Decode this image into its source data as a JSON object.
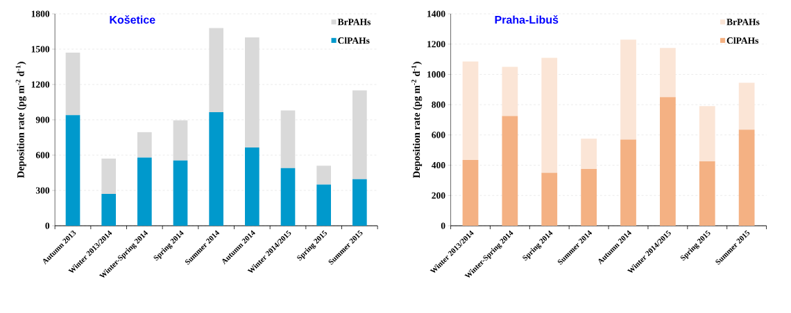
{
  "chart_data": [
    {
      "type": "bar",
      "title": "Košetice",
      "ylabel": "Deposition rate (pg m$^{-2}$ d$^{-1}$)",
      "categories": [
        "Autumn 2013",
        "Winter 2013/2014",
        "Winter-Spring 2014",
        "Spring 2014",
        "Summer 2014",
        "Autumn 2014",
        "Winter 2014/2015",
        "Spring 2015",
        "Summer 2015"
      ],
      "stacked": true,
      "ylim": [
        0,
        1800
      ],
      "yticks": [
        0,
        300,
        600,
        900,
        1200,
        1500,
        1800
      ],
      "grid": "y",
      "legend": "top right",
      "series": [
        {
          "name": "ClPAHs",
          "color": "#0099cc",
          "values": [
            940,
            270,
            580,
            555,
            965,
            665,
            490,
            350,
            395
          ]
        },
        {
          "name": "BrPAHs",
          "color": "#d9d9d9",
          "values": [
            530,
            300,
            215,
            340,
            715,
            935,
            490,
            160,
            755
          ]
        }
      ]
    },
    {
      "type": "bar",
      "title": "Praha-Libuš",
      "ylabel": "Deposition rate (pg m$^{-2}$ d$^{-1}$)",
      "categories": [
        "Winter 2013/2014",
        "Winter-Spring 2014",
        "Spring 2014",
        "Summer 2014",
        "Autumn 2014",
        "Winter 2014/2015",
        "Spring 2015",
        "Summer 2015"
      ],
      "stacked": true,
      "ylim": [
        0,
        1400
      ],
      "yticks": [
        0,
        200,
        400,
        600,
        800,
        1000,
        1200,
        1400
      ],
      "grid": "y",
      "legend": "top right",
      "series": [
        {
          "name": "ClPAHs",
          "color": "#f4b183",
          "values": [
            435,
            725,
            350,
            375,
            570,
            850,
            425,
            635
          ]
        },
        {
          "name": "BrPAHs",
          "color": "#fbe5d6",
          "values": [
            650,
            325,
            760,
            200,
            660,
            325,
            365,
            310
          ]
        }
      ]
    }
  ]
}
